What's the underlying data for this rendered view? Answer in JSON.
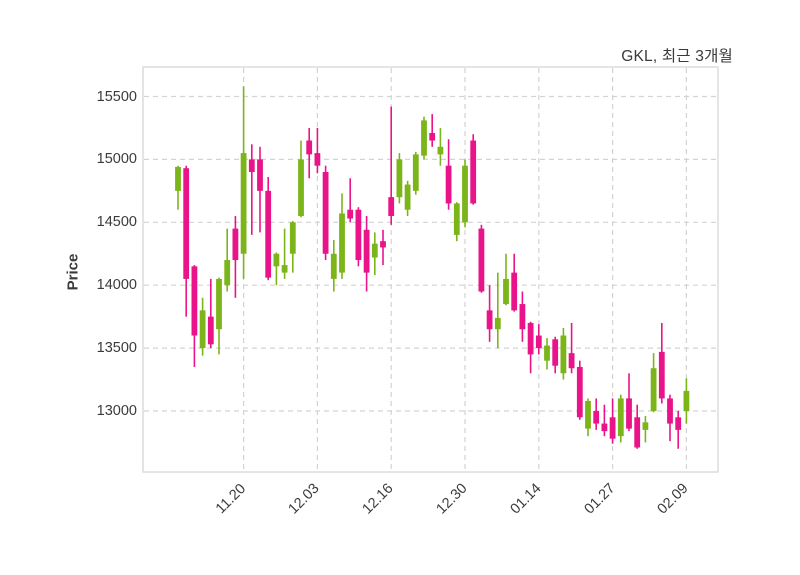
{
  "title": "GKL, 최근 3개월",
  "chart_data": {
    "type": "candlestick",
    "title": "GKL, 최근 3개월",
    "ylabel": "Price",
    "grid": true,
    "y_ticks": [
      13000,
      13500,
      14000,
      14500,
      15000,
      15500
    ],
    "ylim": [
      12515,
      15735
    ],
    "x_tick_labels": [
      "11.20",
      "12.03",
      "12.16",
      "12.30",
      "01.14",
      "01.27",
      "02.09"
    ],
    "x_tick_indices": [
      8,
      17,
      26,
      35,
      44,
      53,
      62
    ],
    "up_color": "#7cb51a",
    "down_color": "#e91489",
    "grid_color": "#d3d3d3",
    "border_color": "#dcdcdc",
    "text_color": "#3b3b3b",
    "candles_ohlc": [
      [
        14750,
        14950,
        14600,
        14940
      ],
      [
        14930,
        14950,
        13750,
        14050
      ],
      [
        14150,
        14160,
        13350,
        13600
      ],
      [
        13500,
        13900,
        13440,
        13800
      ],
      [
        13750,
        14050,
        13500,
        13530
      ],
      [
        13650,
        14060,
        13450,
        14050
      ],
      [
        14000,
        14450,
        13950,
        14200
      ],
      [
        14450,
        14550,
        13900,
        14200
      ],
      [
        14250,
        15580,
        14050,
        15050
      ],
      [
        15000,
        15120,
        14400,
        14900
      ],
      [
        15000,
        15100,
        14420,
        14750
      ],
      [
        14750,
        14860,
        14040,
        14060
      ],
      [
        14150,
        14260,
        14000,
        14250
      ],
      [
        14100,
        14450,
        14050,
        14160
      ],
      [
        14250,
        14510,
        14100,
        14500
      ],
      [
        14550,
        15150,
        14540,
        15000
      ],
      [
        15150,
        15250,
        14850,
        15040
      ],
      [
        15050,
        15250,
        14890,
        14950
      ],
      [
        14900,
        14950,
        14200,
        14250
      ],
      [
        14050,
        14360,
        13950,
        14250
      ],
      [
        14100,
        14730,
        14050,
        14570
      ],
      [
        14600,
        14850,
        14500,
        14530
      ],
      [
        14600,
        14620,
        14150,
        14200
      ],
      [
        14440,
        14550,
        13950,
        14100
      ],
      [
        14220,
        14420,
        14080,
        14330
      ],
      [
        14350,
        14440,
        14160,
        14300
      ],
      [
        14700,
        15420,
        14480,
        14550
      ],
      [
        14700,
        15050,
        14650,
        15000
      ],
      [
        14600,
        14830,
        14550,
        14800
      ],
      [
        14750,
        15060,
        14720,
        15040
      ],
      [
        15030,
        15340,
        15000,
        15310
      ],
      [
        15210,
        15360,
        15100,
        15150
      ],
      [
        15040,
        15250,
        14950,
        15100
      ],
      [
        14950,
        15160,
        14600,
        14650
      ],
      [
        14400,
        14660,
        14350,
        14650
      ],
      [
        14500,
        15000,
        14460,
        14950
      ],
      [
        15150,
        15200,
        14640,
        14650
      ],
      [
        14450,
        14480,
        13940,
        13950
      ],
      [
        13800,
        14000,
        13550,
        13650
      ],
      [
        13650,
        14100,
        13500,
        13740
      ],
      [
        13850,
        14250,
        13840,
        14050
      ],
      [
        14100,
        14250,
        13790,
        13800
      ],
      [
        13850,
        13950,
        13550,
        13650
      ],
      [
        13700,
        13710,
        13300,
        13450
      ],
      [
        13600,
        13690,
        13450,
        13500
      ],
      [
        13400,
        13580,
        13330,
        13520
      ],
      [
        13570,
        13590,
        13300,
        13360
      ],
      [
        13300,
        13660,
        13250,
        13600
      ],
      [
        13460,
        13700,
        13300,
        13340
      ],
      [
        13350,
        13400,
        12930,
        12950
      ],
      [
        12860,
        13100,
        12800,
        13080
      ],
      [
        13000,
        13100,
        12850,
        12900
      ],
      [
        12900,
        13050,
        12800,
        12840
      ],
      [
        12950,
        13100,
        12740,
        12780
      ],
      [
        12800,
        13130,
        12750,
        13100
      ],
      [
        13100,
        13300,
        12840,
        12860
      ],
      [
        12950,
        13050,
        12700,
        12710
      ],
      [
        12850,
        12960,
        12750,
        12910
      ],
      [
        13000,
        13460,
        12990,
        13340
      ],
      [
        13470,
        13700,
        13060,
        13100
      ],
      [
        13100,
        13130,
        12760,
        12900
      ],
      [
        12950,
        13000,
        12700,
        12850
      ],
      [
        13000,
        13260,
        12900,
        13160
      ]
    ]
  }
}
